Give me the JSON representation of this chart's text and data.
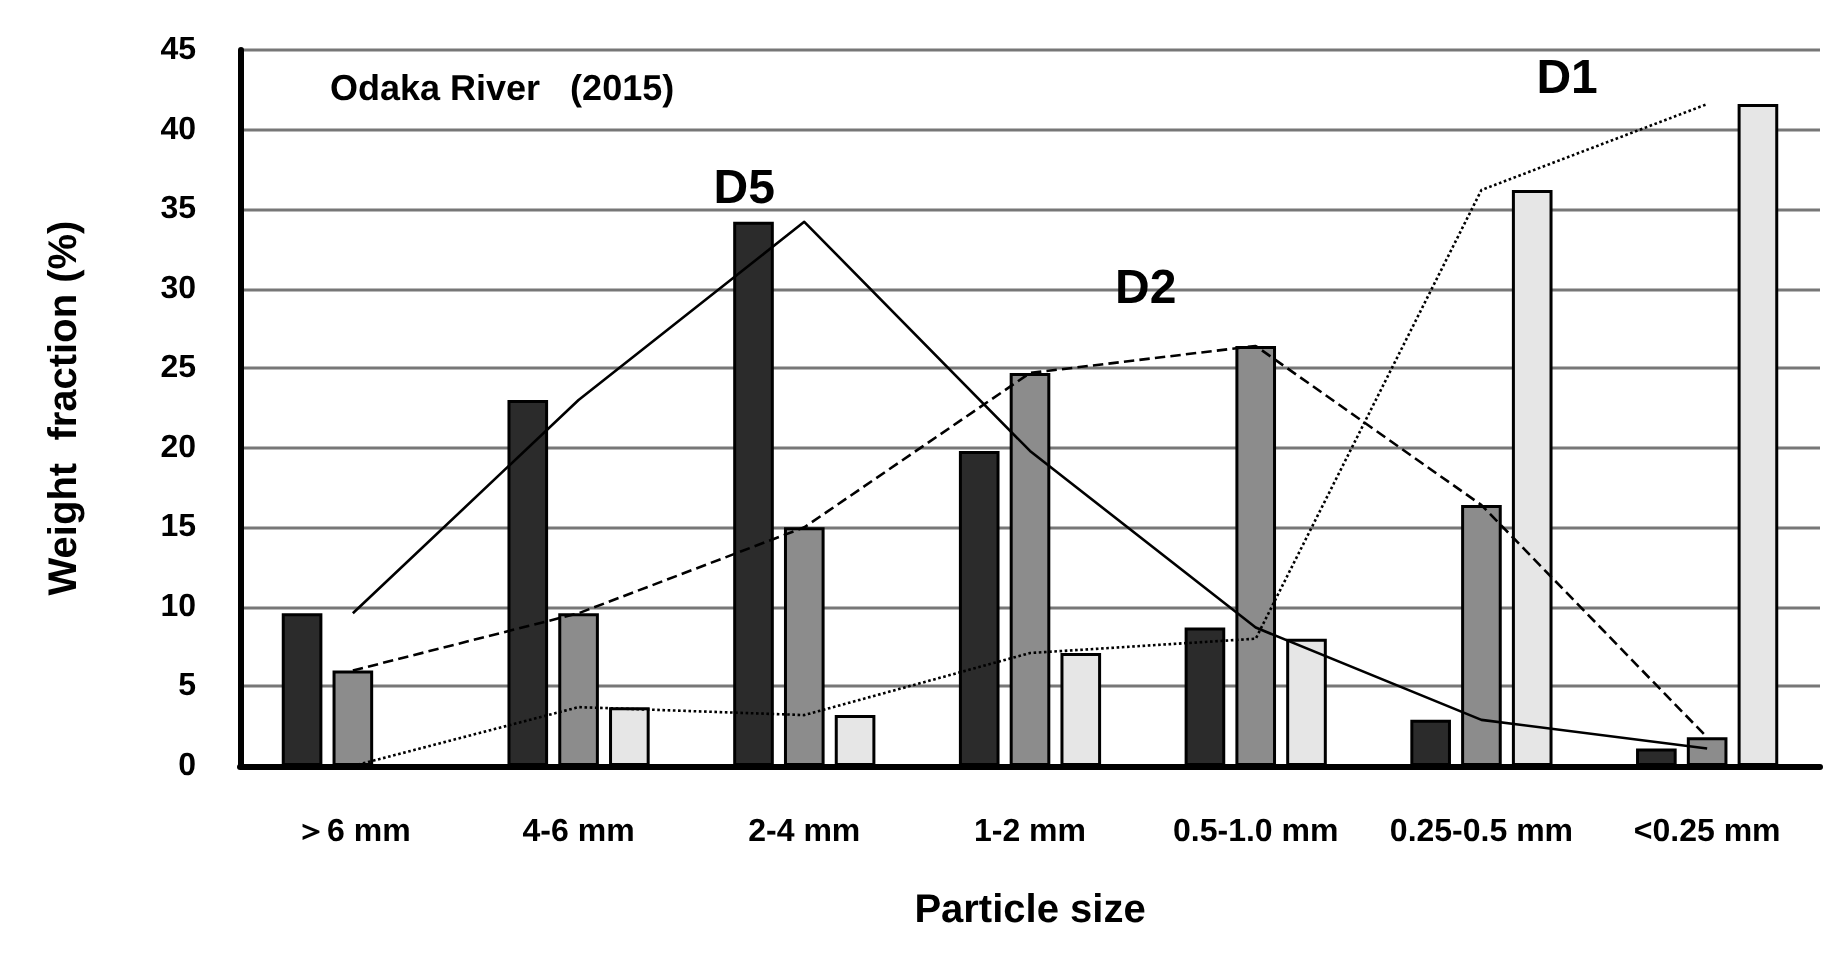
{
  "chart_data": {
    "type": "bar",
    "title": "Odaka River   (2015)",
    "xlabel": "Particle size",
    "ylabel": "Weight  fraction (%)",
    "categories": [
      "＞6 mm",
      "4-6 mm",
      "2-4 mm",
      "1-2 mm",
      "0.5-1.0 mm",
      "0.25-0.5 mm",
      "<0.25 mm"
    ],
    "series": [
      {
        "color": "#2b2b2b",
        "values": [
          9.6,
          23,
          34.2,
          19.8,
          8.7,
          2.9,
          1.1
        ]
      },
      {
        "color": "#8c8c8c",
        "values": [
          6,
          9.6,
          15,
          24.7,
          26.4,
          16.4,
          1.8
        ]
      },
      {
        "color": "#e6e6e6",
        "values": [
          0,
          3.7,
          3.2,
          7.1,
          8,
          36.2,
          41.6
        ]
      },
      {
        "type": "line",
        "name": "D5",
        "color": "#000000",
        "line_style": "solid",
        "values": [
          9.6,
          23,
          34.2,
          19.8,
          8.7,
          2.9,
          1.1
        ]
      },
      {
        "type": "line",
        "name": "D2",
        "color": "#000000",
        "line_style": "dashed",
        "values": [
          6,
          9.6,
          15,
          24.7,
          26.4,
          16.4,
          1.8
        ]
      },
      {
        "type": "line",
        "name": "D1",
        "color": "#000000",
        "line_style": "dotted",
        "values": [
          0,
          3.7,
          3.2,
          7.1,
          8,
          36.2,
          41.6
        ]
      }
    ],
    "ylim": [
      0,
      45
    ],
    "yticks": [
      0,
      5,
      10,
      15,
      20,
      25,
      30,
      35,
      40,
      45
    ],
    "grid": "y",
    "legend": false,
    "marker": "none"
  }
}
